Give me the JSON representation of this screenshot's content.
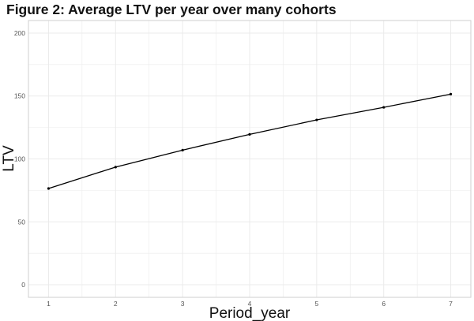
{
  "chart_data": {
    "type": "line",
    "title": "Figure 2: Average LTV per year over many cohorts",
    "xlabel": "Period_year",
    "ylabel": "LTV",
    "x": [
      1,
      2,
      3,
      4,
      5,
      6,
      7
    ],
    "series": [
      {
        "values": [
          76.5,
          93.5,
          107,
          119.5,
          131,
          141,
          151.5
        ]
      }
    ],
    "xlim": [
      0.7,
      7.3
    ],
    "ylim": [
      -10,
      210
    ],
    "x_ticks": [
      "1",
      "2",
      "3",
      "4",
      "5",
      "6",
      "7"
    ],
    "y_ticks": [
      "0",
      "50",
      "100",
      "150",
      "200"
    ],
    "grid": true,
    "line_color": "#000000",
    "grid_color": "#ebebeb"
  }
}
